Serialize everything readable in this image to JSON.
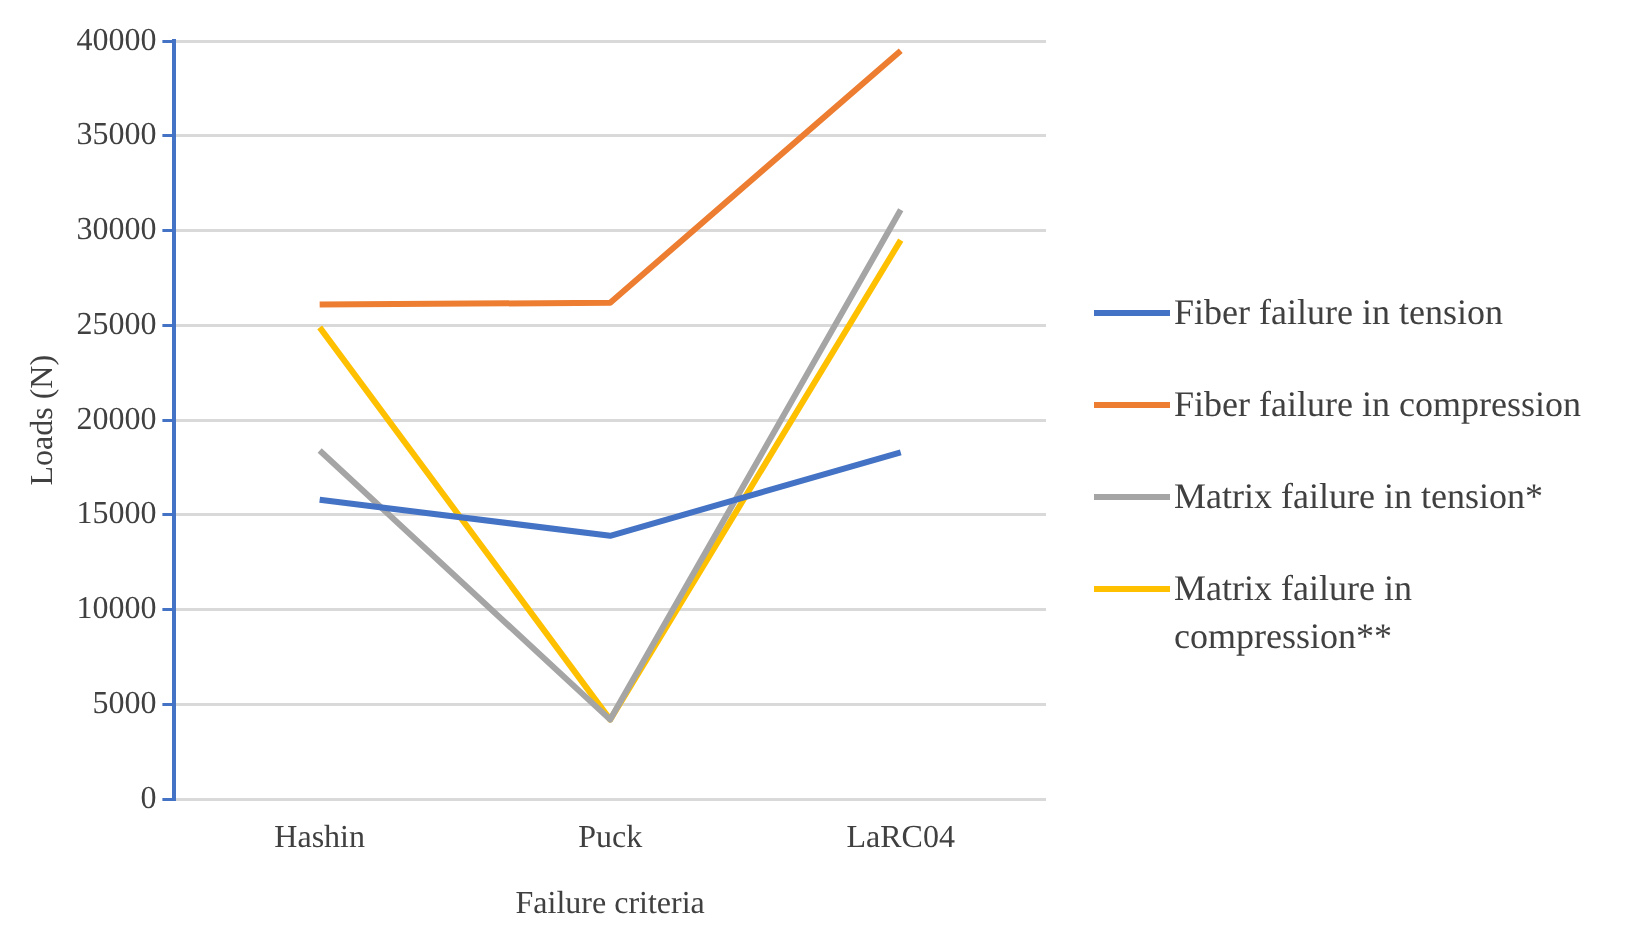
{
  "chart_data": {
    "type": "line",
    "xlabel": "Failure criteria",
    "ylabel": "Loads (N)",
    "categories": [
      "Hashin",
      "Puck",
      "LaRC04"
    ],
    "series": [
      {
        "name": "Fiber failure in tension",
        "color": "#4472c4",
        "values": [
          15800,
          13900,
          18300
        ]
      },
      {
        "name": "Fiber failure in compression",
        "color": "#ed7d31",
        "values": [
          26100,
          26200,
          39500
        ]
      },
      {
        "name": "Matrix failure in tension*",
        "color": "#a5a5a5",
        "values": [
          18400,
          4200,
          31100
        ]
      },
      {
        "name": "Matrix failure in compression**",
        "color": "#ffc000",
        "values": [
          24900,
          4200,
          29500
        ]
      }
    ],
    "ylim": [
      0,
      40000
    ],
    "yticks": [
      0,
      5000,
      10000,
      15000,
      20000,
      25000,
      30000,
      35000,
      40000
    ],
    "grid": "y",
    "legend": "right",
    "marker": "none",
    "line_style": "solid"
  }
}
